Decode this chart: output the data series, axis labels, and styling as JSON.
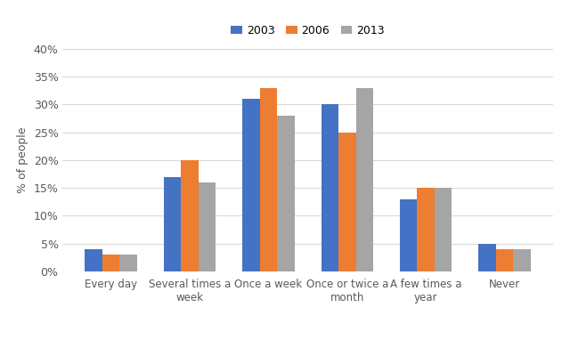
{
  "categories": [
    "Every day",
    "Several times a\nweek",
    "Once a week",
    "Once or twice a\nmonth",
    "A few times a\nyear",
    "Never"
  ],
  "series": {
    "2003": [
      4,
      17,
      31,
      30,
      13,
      5
    ],
    "2006": [
      3,
      20,
      33,
      25,
      15,
      4
    ],
    "2013": [
      3,
      16,
      28,
      33,
      15,
      4
    ]
  },
  "colors": {
    "2003": "#4472C4",
    "2006": "#ED7D31",
    "2013": "#A5A5A5"
  },
  "ylabel": "% of people",
  "ylim": [
    0,
    40
  ],
  "yticks": [
    0,
    5,
    10,
    15,
    20,
    25,
    30,
    35,
    40
  ],
  "ytick_labels": [
    "0%",
    "5%",
    "10%",
    "15%",
    "20%",
    "25%",
    "30%",
    "35%",
    "40%"
  ],
  "legend_labels": [
    "2003",
    "2006",
    "2013"
  ],
  "bar_width": 0.22,
  "background_color": "#ffffff",
  "grid_color": "#d9d9d9"
}
